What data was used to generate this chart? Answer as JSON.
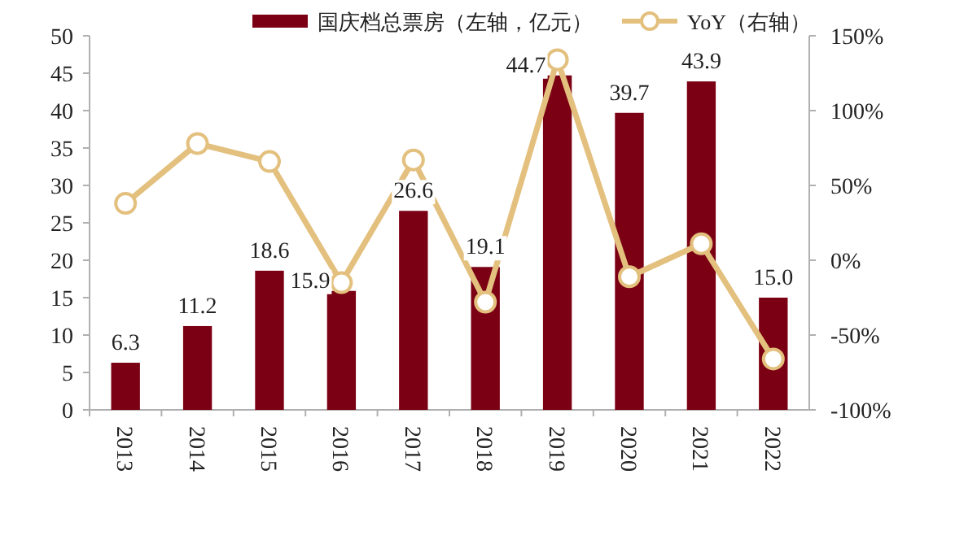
{
  "chart_data": {
    "type": "bar",
    "categories": [
      "2013",
      "2014",
      "2015",
      "2016",
      "2017",
      "2018",
      "2019",
      "2020",
      "2021",
      "2022"
    ],
    "series": [
      {
        "name": "国庆档总票房（左轴，亿元）",
        "color": "#7b0014",
        "values": [
          6.3,
          11.2,
          18.6,
          15.9,
          26.6,
          19.1,
          44.7,
          39.7,
          43.9,
          15.0
        ],
        "value_labels": [
          "6.3",
          "11.2",
          "18.6",
          "15.9",
          "26.6",
          "19.1",
          "44.7",
          "39.7",
          "43.9",
          "15.0"
        ]
      },
      {
        "name": "YoY（右轴）",
        "type": "line",
        "axis": "y2",
        "color": "#e3c07e",
        "marker": "circle",
        "values": [
          38,
          78,
          66,
          -15,
          67,
          -28,
          134,
          -11,
          11,
          -66
        ]
      }
    ],
    "ylim": [
      0,
      50
    ],
    "yticks": [
      0,
      5,
      10,
      15,
      20,
      25,
      30,
      35,
      40,
      45,
      50
    ],
    "y2lim": [
      -100,
      150
    ],
    "y2ticks": [
      {
        "value": -100,
        "label": "-100%"
      },
      {
        "value": -50,
        "label": "-50%"
      },
      {
        "value": 0,
        "label": "0%"
      },
      {
        "value": 50,
        "label": "50%"
      },
      {
        "value": 100,
        "label": "100%"
      },
      {
        "value": 150,
        "label": "150%"
      }
    ],
    "legend": "top",
    "grid": false
  }
}
